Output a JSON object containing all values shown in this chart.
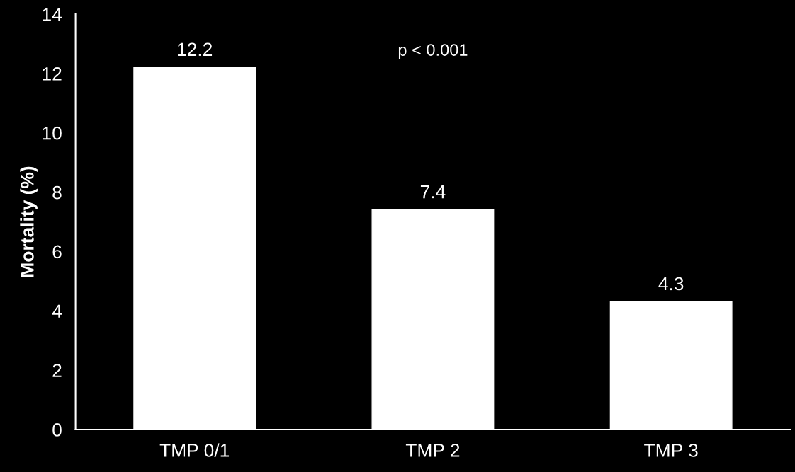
{
  "chart_data": {
    "type": "bar",
    "ylabel": "Mortality (%)",
    "categories": [
      "TMP 0/1",
      "TMP 2",
      "TMP 3"
    ],
    "values": [
      12.2,
      7.4,
      4.3
    ],
    "color": "#ffffff",
    "ylim": [
      0,
      14
    ],
    "yticks": [
      0,
      2,
      4,
      6,
      8,
      10,
      12,
      14
    ],
    "data_labels": true,
    "grid": false,
    "legend": false,
    "annotations": [
      "p < 0.001"
    ]
  }
}
